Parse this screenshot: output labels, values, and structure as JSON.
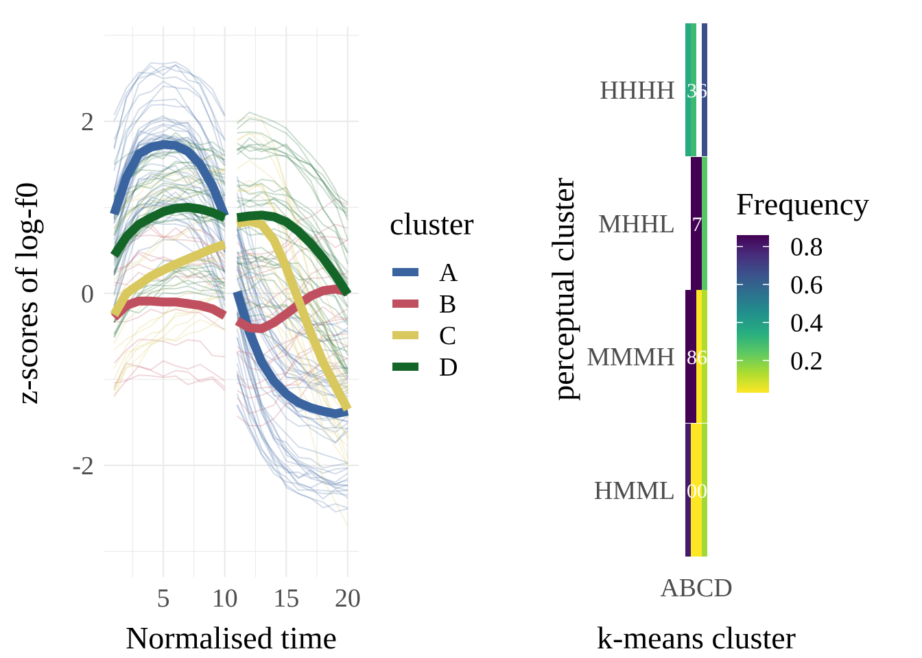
{
  "chart_data": [
    {
      "type": "line",
      "xlabel": "Normalised time",
      "ylabel": "z-scores of log-f0",
      "xlim": [
        0.2,
        20.9
      ],
      "ylim": [
        -3.3,
        3.1
      ],
      "x_ticks": [
        5,
        10,
        15,
        20
      ],
      "y_ticks": [
        -2,
        0,
        2
      ],
      "grid": true,
      "legend": {
        "title": "cluster",
        "position": "right"
      },
      "series": [
        {
          "name": "A",
          "color": "#3a64a0",
          "segments": [
            {
              "x": [
                1,
                2,
                3,
                4,
                5,
                6,
                7,
                8,
                9,
                10
              ],
              "y": [
                0.92,
                1.35,
                1.62,
                1.7,
                1.73,
                1.72,
                1.65,
                1.5,
                1.25,
                0.9
              ]
            },
            {
              "x": [
                11,
                12,
                13,
                14,
                15,
                16,
                17,
                18,
                19,
                20
              ],
              "y": [
                0.02,
                -0.45,
                -0.8,
                -1.02,
                -1.17,
                -1.27,
                -1.33,
                -1.37,
                -1.4,
                -1.37
              ]
            }
          ]
        },
        {
          "name": "B",
          "color": "#c0505f",
          "segments": [
            {
              "x": [
                1,
                2,
                3,
                4,
                5,
                6,
                7,
                8,
                9,
                10
              ],
              "y": [
                -0.28,
                -0.14,
                -0.09,
                -0.09,
                -0.1,
                -0.1,
                -0.12,
                -0.14,
                -0.18,
                -0.26
              ]
            },
            {
              "x": [
                11,
                12,
                13,
                14,
                15,
                16,
                17,
                18,
                19,
                20
              ],
              "y": [
                -0.32,
                -0.4,
                -0.41,
                -0.34,
                -0.24,
                -0.13,
                -0.03,
                0.03,
                0.05,
                0.02
              ]
            }
          ]
        },
        {
          "name": "C",
          "color": "#d9c85e",
          "segments": [
            {
              "x": [
                1,
                2,
                3,
                4,
                5,
                6,
                7,
                8,
                9,
                10
              ],
              "y": [
                -0.25,
                0.0,
                0.1,
                0.2,
                0.27,
                0.34,
                0.4,
                0.46,
                0.52,
                0.57
              ]
            },
            {
              "x": [
                11,
                12,
                13,
                14,
                15,
                16,
                17,
                18,
                19,
                20
              ],
              "y": [
                0.81,
                0.84,
                0.8,
                0.62,
                0.3,
                -0.08,
                -0.46,
                -0.8,
                -1.08,
                -1.35
              ]
            }
          ]
        },
        {
          "name": "D",
          "color": "#146628",
          "segments": [
            {
              "x": [
                1,
                2,
                3,
                4,
                5,
                6,
                7,
                8,
                9,
                10
              ],
              "y": [
                0.44,
                0.66,
                0.8,
                0.88,
                0.95,
                0.99,
                1.0,
                0.98,
                0.94,
                0.88
              ]
            },
            {
              "x": [
                11,
                12,
                13,
                14,
                15,
                16,
                17,
                18,
                19,
                20
              ],
              "y": [
                0.88,
                0.9,
                0.91,
                0.89,
                0.83,
                0.72,
                0.58,
                0.41,
                0.21,
                -0.01
              ]
            }
          ]
        }
      ]
    },
    {
      "type": "heatmap",
      "xlabel": "k-means cluster",
      "ylabel": "perceptual cluster",
      "x_categories": [
        "A",
        "B",
        "C",
        "D"
      ],
      "y_categories": [
        "HHHH",
        "MHHL",
        "MMMH",
        "HMML"
      ],
      "x_tick_label_text": "ABCD",
      "legend": {
        "title": "Frequency",
        "position": "right",
        "ticks": [
          0.8,
          0.6,
          0.4,
          0.2
        ],
        "tick_labels": [
          "0.8",
          "0.6",
          "0.4",
          "0.2"
        ],
        "range": [
          0.03,
          0.86
        ],
        "colormap": "viridis (reversed)"
      },
      "cell_values": {
        "HHHH": [
          0.36,
          0.3,
          0.0,
          0.66
        ],
        "MHHL": [
          0.0,
          0.86,
          0.86,
          0.25
        ],
        "MMMH": [
          0.86,
          0.86,
          0.03,
          0.13
        ],
        "HMML": [
          0.8,
          0.03,
          0.03,
          0.15
        ]
      },
      "cell_label_text": {
        "HHHH": "36",
        "MHHL": "7",
        "MMMH": "86",
        "HMML": "00"
      }
    }
  ]
}
